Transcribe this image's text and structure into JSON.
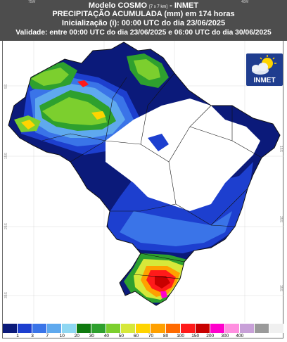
{
  "header": {
    "model_prefix": "Modelo COSMO ",
    "resolution": "[7 x 7 km]",
    "model_suffix": " - INMET",
    "title": "PRECIPITAÇÃO ACUMULADA (mm) em 174 horas",
    "init": "Inicialização (i): 00:00 UTC do dia 23/06/2025",
    "validity": "Validade: entre 00:00 UTC do dia 23/06/2025 e 06:00 UTC do dia 30/06/2025"
  },
  "grid_labels": {
    "top_left": "75W",
    "top_right": "40W",
    "left": [
      "5S",
      "15S",
      "25S",
      "35S"
    ],
    "right": [
      "5S",
      "15S",
      "25S",
      "35S"
    ]
  },
  "logo": {
    "text": "INMET",
    "icon": "sun-cloud-icon"
  },
  "legend": {
    "colors": [
      "#0b1a7a",
      "#1d3fcf",
      "#3a74e8",
      "#5fa9ee",
      "#8fd7f2",
      "#0f7a0f",
      "#2ea02e",
      "#7ccf2e",
      "#d6e83a",
      "#ffd400",
      "#ffa000",
      "#ff6a00",
      "#ff1a1a",
      "#c80000",
      "#ff00cc",
      "#ff8fe0",
      "#c8a0d8",
      "#9a9a9a",
      "#f0f0f0"
    ],
    "labels": [
      "1",
      "3",
      "7",
      "10",
      "20",
      "30",
      "40",
      "50",
      "60",
      "70",
      "80",
      "100",
      "150",
      "200",
      "300",
      "400"
    ]
  }
}
